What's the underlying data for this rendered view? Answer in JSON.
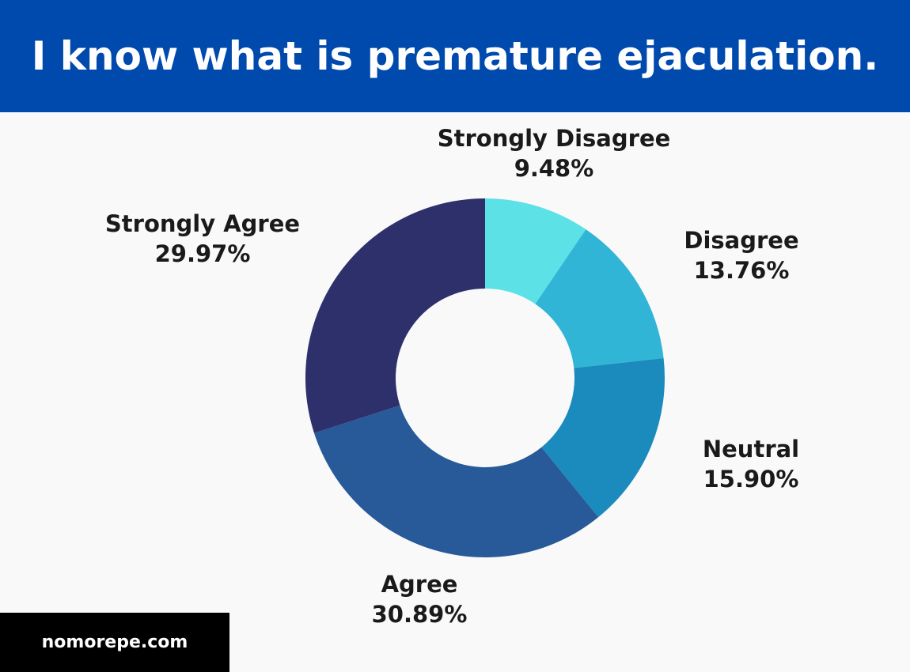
{
  "header": {
    "title": "I know what is premature ejaculation.",
    "background": "#004aad"
  },
  "footer": {
    "site": "nomorepe.com"
  },
  "chart_data": {
    "type": "pie",
    "donut": true,
    "title": "I know what is premature ejaculation.",
    "slices": [
      {
        "label": "Strongly Disagree",
        "value": 9.48,
        "display": "9.48%",
        "color": "#5ce1e6"
      },
      {
        "label": "Disagree",
        "value": 13.76,
        "display": "13.76%",
        "color": "#31b5d7"
      },
      {
        "label": "Neutral",
        "value": 15.9,
        "display": "15.90%",
        "color": "#1b8bbd"
      },
      {
        "label": "Agree",
        "value": 30.89,
        "display": "30.89%",
        "color": "#285a99"
      },
      {
        "label": "Strongly Agree",
        "value": 29.97,
        "display": "29.97%",
        "color": "#2d306b"
      }
    ],
    "start": "top",
    "direction": "clockwise"
  }
}
